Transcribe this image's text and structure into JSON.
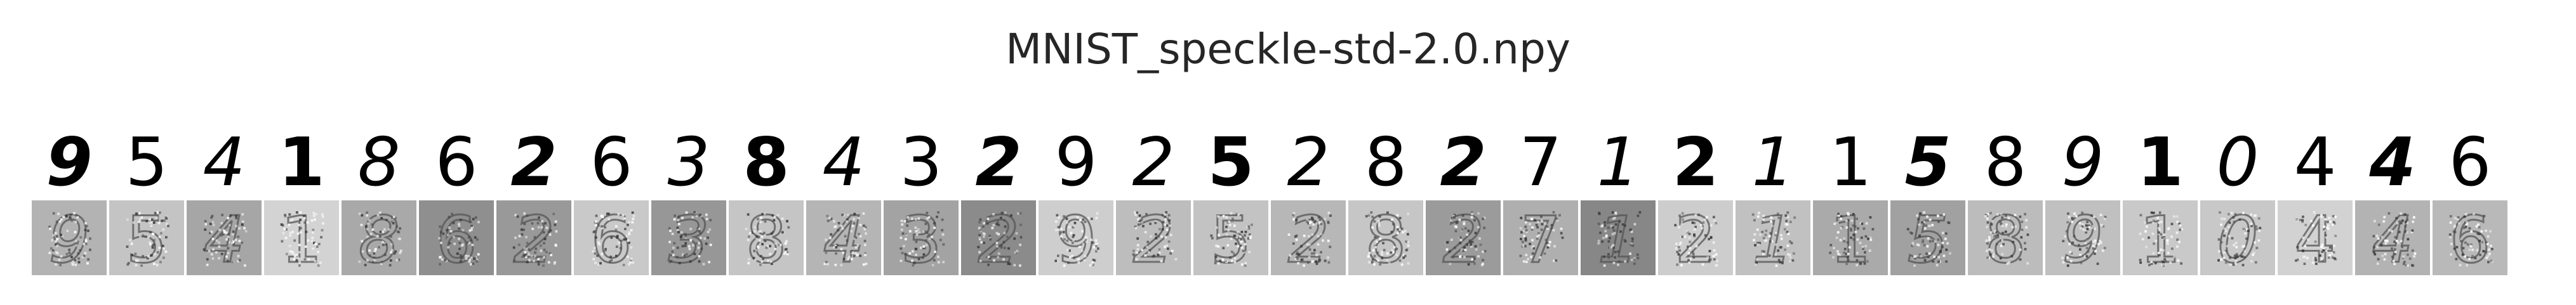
{
  "figure": {
    "title": "MNIST_speckle-std-2.0.npy"
  },
  "samples": [
    {
      "digit": "9",
      "noisy_background": "#b3b3b3"
    },
    {
      "digit": "5",
      "noisy_background": "#c4c4c4"
    },
    {
      "digit": "4",
      "noisy_background": "#a6a6a6"
    },
    {
      "digit": "1",
      "noisy_background": "#d3d3d3"
    },
    {
      "digit": "8",
      "noisy_background": "#a9a9a9"
    },
    {
      "digit": "6",
      "noisy_background": "#8f8f8f"
    },
    {
      "digit": "2",
      "noisy_background": "#999999"
    },
    {
      "digit": "6",
      "noisy_background": "#c9c9c9"
    },
    {
      "digit": "3",
      "noisy_background": "#979797"
    },
    {
      "digit": "8",
      "noisy_background": "#c5c5c5"
    },
    {
      "digit": "4",
      "noisy_background": "#b5b5b5"
    },
    {
      "digit": "3",
      "noisy_background": "#a3a3a3"
    },
    {
      "digit": "2",
      "noisy_background": "#8b8b8b"
    },
    {
      "digit": "9",
      "noisy_background": "#cecece"
    },
    {
      "digit": "2",
      "noisy_background": "#bdbdbd"
    },
    {
      "digit": "5",
      "noisy_background": "#c3c3c3"
    },
    {
      "digit": "2",
      "noisy_background": "#b7b7b7"
    },
    {
      "digit": "8",
      "noisy_background": "#c6c6c6"
    },
    {
      "digit": "2",
      "noisy_background": "#9b9b9b"
    },
    {
      "digit": "7",
      "noisy_background": "#afafaf"
    },
    {
      "digit": "1",
      "noisy_background": "#878787"
    },
    {
      "digit": "2",
      "noisy_background": "#cdcdcd"
    },
    {
      "digit": "1",
      "noisy_background": "#c1c1c1"
    },
    {
      "digit": "1",
      "noisy_background": "#aaaaaa"
    },
    {
      "digit": "5",
      "noisy_background": "#a1a1a1"
    },
    {
      "digit": "8",
      "noisy_background": "#bcbcbc"
    },
    {
      "digit": "9",
      "noisy_background": "#c0c0c0"
    },
    {
      "digit": "1",
      "noisy_background": "#c9c9c9"
    },
    {
      "digit": "0",
      "noisy_background": "#c8c8c8"
    },
    {
      "digit": "4",
      "noisy_background": "#d2d2d2"
    },
    {
      "digit": "4",
      "noisy_background": "#b3b3b3"
    },
    {
      "digit": "6",
      "noisy_background": "#b9b9b9"
    }
  ]
}
